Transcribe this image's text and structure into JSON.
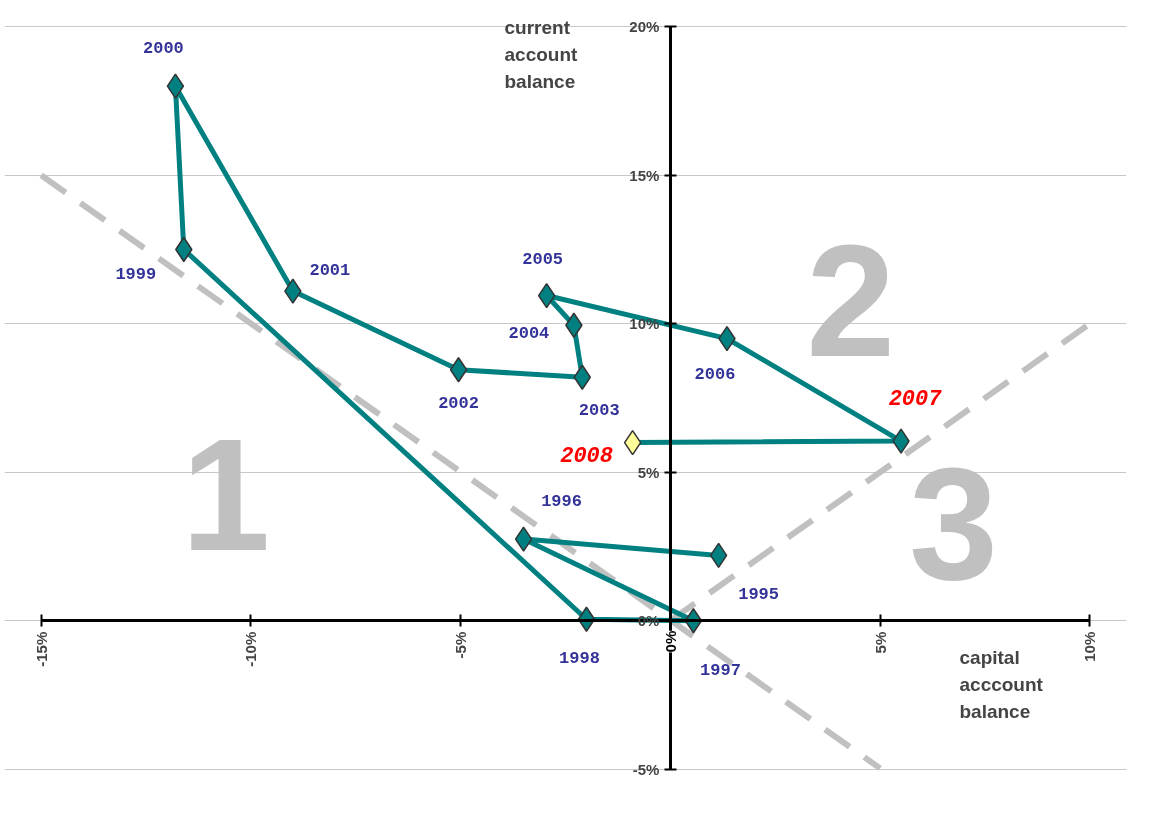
{
  "chart_data": {
    "type": "scatter",
    "xlabel": "capital acccount balance",
    "ylabel": "current account balance",
    "series": [
      {
        "type": "line",
        "color": "#c0c0c0",
        "line_style": "dashed",
        "marker": "none",
        "x": [
          -15.0,
          5.0
        ],
        "values": [
          15.0,
          -4.97
        ]
      },
      {
        "type": "line",
        "color": "#c0c0c0",
        "line_style": "dashed",
        "marker": "none",
        "x": [
          0.0,
          10.0
        ],
        "values": [
          0.0,
          10.0
        ]
      },
      {
        "type": "line",
        "color": "#008080",
        "line_style": "solid",
        "marker": "diamond",
        "x": [
          1.15,
          -3.5,
          0.55,
          -2.0,
          -11.6,
          -11.8,
          -9.0,
          -5.05,
          -2.1,
          -2.3,
          -2.95,
          1.35,
          5.5,
          -0.9
        ],
        "values": [
          2.2,
          2.75,
          0.0,
          0.05,
          12.5,
          18.0,
          11.1,
          8.45,
          8.2,
          9.95,
          10.95,
          9.5,
          6.05,
          6.0
        ],
        "colors": [
          "#008080",
          "#008080",
          "#008080",
          "#008080",
          "#008080",
          "#008080",
          "#008080",
          "#008080",
          "#008080",
          "#008080",
          "#008080",
          "#008080",
          "#008080",
          "#ffff99"
        ]
      }
    ],
    "annotations": [
      "1",
      "2",
      "3",
      {
        "text": "1995",
        "x": 1.15,
        "y": 2.2
      },
      {
        "text": "1996",
        "x": -3.5,
        "y": 2.75
      },
      {
        "text": "1997",
        "x": 0.55,
        "y": 0.0
      },
      {
        "text": "1998",
        "x": -2.0,
        "y": 0.05
      },
      {
        "text": "1999",
        "x": -11.6,
        "y": 12.5
      },
      {
        "text": "2000",
        "x": -11.8,
        "y": 18.0
      },
      {
        "text": "2001",
        "x": -9.0,
        "y": 11.1
      },
      {
        "text": "2002",
        "x": -5.05,
        "y": 8.45
      },
      {
        "text": "2003",
        "x": -2.1,
        "y": 8.2
      },
      {
        "text": "2004",
        "x": -2.3,
        "y": 9.95
      },
      {
        "text": "2005",
        "x": -2.95,
        "y": 10.95
      },
      {
        "text": "2006",
        "x": 1.35,
        "y": 9.5
      },
      {
        "text": "2007",
        "x": 5.5,
        "y": 6.05
      },
      {
        "text": "2008",
        "x": -0.9,
        "y": 6.0
      }
    ],
    "xlim": [
      -15,
      10
    ],
    "xticks": [
      {
        "value": -15,
        "label": "-15%"
      },
      {
        "value": -10,
        "label": "-10%"
      },
      {
        "value": -5,
        "label": "-5%"
      },
      {
        "value": 0,
        "label": "0%"
      },
      {
        "value": 5,
        "label": "5%"
      },
      {
        "value": 10,
        "label": "10%"
      }
    ],
    "ylim": [
      -5,
      20
    ],
    "yticks": [
      {
        "value": -5,
        "label": "-5%"
      },
      {
        "value": 0,
        "label": "0%"
      },
      {
        "value": 5,
        "label": "5%"
      },
      {
        "value": 10,
        "label": "10%"
      },
      {
        "value": 15,
        "label": "15%"
      },
      {
        "value": 20,
        "label": "20%"
      }
    ],
    "grid": "y"
  }
}
